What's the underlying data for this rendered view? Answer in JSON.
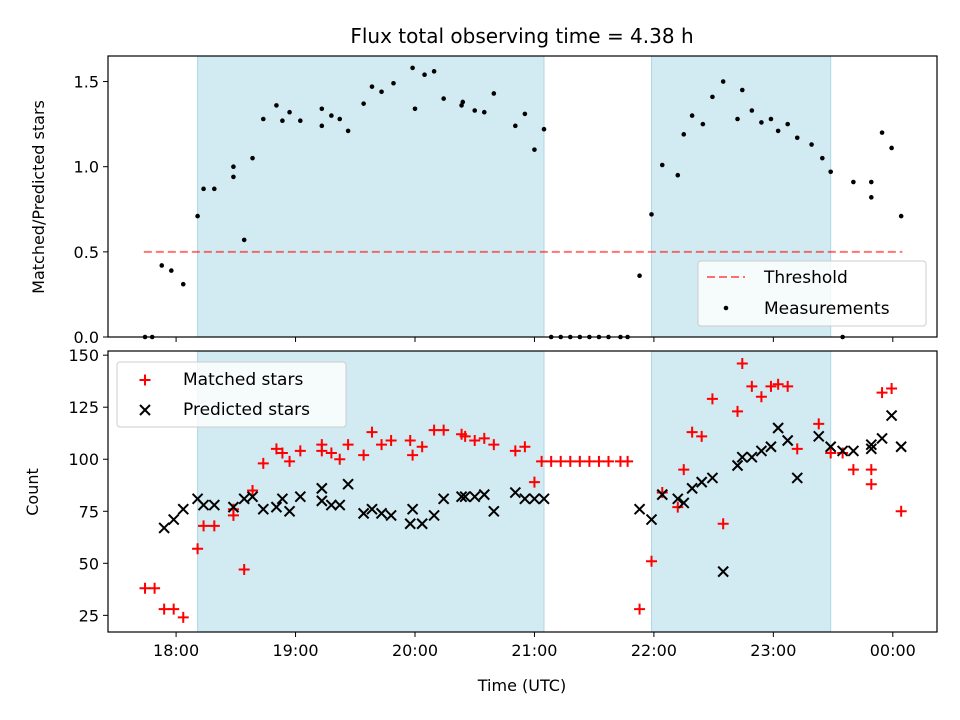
{
  "figure": {
    "title": "Flux total observing time = 4.38 h",
    "xlabel": "Time (UTC)",
    "xticks": [
      {
        "t": 18.0,
        "label": "18:00"
      },
      {
        "t": 19.0,
        "label": "19:00"
      },
      {
        "t": 20.0,
        "label": "20:00"
      },
      {
        "t": 21.0,
        "label": "21:00"
      },
      {
        "t": 22.0,
        "label": "22:00"
      },
      {
        "t": 23.0,
        "label": "23:00"
      },
      {
        "t": 24.0,
        "label": "00:00"
      }
    ],
    "xlim": [
      17.43,
      24.37
    ],
    "shaded_intervals": [
      [
        18.18,
        21.08
      ],
      [
        21.98,
        23.48
      ]
    ],
    "shade_color": "#add8e6"
  },
  "chart_data": [
    {
      "type": "scatter",
      "ylabel": "Matched/Predicted stars",
      "ylim": [
        0,
        1.65
      ],
      "yticks": [
        {
          "v": 0.0,
          "label": "0.0"
        },
        {
          "v": 0.5,
          "label": "0.5"
        },
        {
          "v": 1.0,
          "label": "1.0"
        },
        {
          "v": 1.5,
          "label": "1.5"
        }
      ],
      "legend_position": "bottom-right",
      "threshold": {
        "name": "Threshold",
        "value": 0.5,
        "x_range": [
          17.73,
          24.08
        ],
        "color": "#ff0000"
      },
      "series": [
        {
          "name": "Measurements",
          "marker": "dot",
          "color": "#000000",
          "points": [
            [
              17.74,
              0.0
            ],
            [
              17.8,
              0.0
            ],
            [
              17.88,
              0.42
            ],
            [
              17.96,
              0.39
            ],
            [
              18.06,
              0.31
            ],
            [
              18.18,
              0.71
            ],
            [
              18.23,
              0.87
            ],
            [
              18.32,
              0.87
            ],
            [
              18.48,
              1.0
            ],
            [
              18.48,
              0.94
            ],
            [
              18.57,
              0.57
            ],
            [
              18.64,
              1.05
            ],
            [
              18.73,
              1.28
            ],
            [
              18.84,
              1.36
            ],
            [
              18.89,
              1.27
            ],
            [
              18.95,
              1.32
            ],
            [
              19.04,
              1.27
            ],
            [
              19.22,
              1.34
            ],
            [
              19.22,
              1.24
            ],
            [
              19.3,
              1.3
            ],
            [
              19.37,
              1.28
            ],
            [
              19.44,
              1.21
            ],
            [
              19.57,
              1.37
            ],
            [
              19.64,
              1.47
            ],
            [
              19.72,
              1.44
            ],
            [
              19.82,
              1.49
            ],
            [
              19.98,
              1.58
            ],
            [
              20.0,
              1.34
            ],
            [
              20.08,
              1.54
            ],
            [
              20.16,
              1.56
            ],
            [
              20.24,
              1.4
            ],
            [
              20.39,
              1.36
            ],
            [
              20.4,
              1.38
            ],
            [
              20.5,
              1.33
            ],
            [
              20.58,
              1.32
            ],
            [
              20.66,
              1.43
            ],
            [
              20.84,
              1.24
            ],
            [
              20.92,
              1.31
            ],
            [
              21.0,
              1.1
            ],
            [
              21.08,
              1.22
            ],
            [
              21.14,
              0.0
            ],
            [
              21.22,
              0.0
            ],
            [
              21.3,
              0.0
            ],
            [
              21.38,
              0.0
            ],
            [
              21.46,
              0.0
            ],
            [
              21.54,
              0.0
            ],
            [
              21.62,
              0.0
            ],
            [
              21.72,
              0.0
            ],
            [
              21.78,
              0.0
            ],
            [
              21.88,
              0.36
            ],
            [
              21.98,
              0.72
            ],
            [
              22.07,
              1.01
            ],
            [
              22.2,
              0.95
            ],
            [
              22.25,
              1.19
            ],
            [
              22.32,
              1.3
            ],
            [
              22.41,
              1.25
            ],
            [
              22.49,
              1.41
            ],
            [
              22.58,
              1.5
            ],
            [
              22.7,
              1.28
            ],
            [
              22.74,
              1.45
            ],
            [
              22.82,
              1.33
            ],
            [
              22.9,
              1.26
            ],
            [
              22.98,
              1.28
            ],
            [
              23.04,
              1.21
            ],
            [
              23.12,
              1.25
            ],
            [
              23.2,
              1.17
            ],
            [
              23.32,
              1.13
            ],
            [
              23.41,
              1.05
            ],
            [
              23.48,
              0.97
            ],
            [
              23.58,
              0.0
            ],
            [
              23.67,
              0.91
            ],
            [
              23.82,
              0.91
            ],
            [
              23.82,
              0.82
            ],
            [
              23.91,
              1.2
            ],
            [
              23.99,
              1.11
            ],
            [
              24.07,
              0.71
            ]
          ]
        }
      ]
    },
    {
      "type": "scatter",
      "ylabel": "Count",
      "ylim": [
        17,
        152
      ],
      "yticks": [
        {
          "v": 25,
          "label": "25"
        },
        {
          "v": 50,
          "label": "50"
        },
        {
          "v": 75,
          "label": "75"
        },
        {
          "v": 100,
          "label": "100"
        },
        {
          "v": 125,
          "label": "125"
        },
        {
          "v": 150,
          "label": "150"
        }
      ],
      "legend_position": "top-left",
      "series": [
        {
          "name": "Matched stars",
          "marker": "plus",
          "color": "#ff0000",
          "points": [
            [
              17.74,
              38
            ],
            [
              17.82,
              38
            ],
            [
              17.9,
              28
            ],
            [
              17.98,
              28
            ],
            [
              18.06,
              24
            ],
            [
              18.18,
              57
            ],
            [
              18.23,
              68
            ],
            [
              18.32,
              68
            ],
            [
              18.48,
              73
            ],
            [
              18.48,
              76
            ],
            [
              18.57,
              47
            ],
            [
              18.64,
              85
            ],
            [
              18.73,
              98
            ],
            [
              18.84,
              105
            ],
            [
              18.89,
              103
            ],
            [
              18.95,
              99
            ],
            [
              19.04,
              104
            ],
            [
              19.22,
              107
            ],
            [
              19.22,
              104
            ],
            [
              19.3,
              103
            ],
            [
              19.37,
              100
            ],
            [
              19.44,
              107
            ],
            [
              19.57,
              102
            ],
            [
              19.64,
              113
            ],
            [
              19.72,
              107
            ],
            [
              19.8,
              109
            ],
            [
              19.96,
              109
            ],
            [
              19.98,
              102
            ],
            [
              20.06,
              106
            ],
            [
              20.16,
              114
            ],
            [
              20.24,
              114
            ],
            [
              20.39,
              112
            ],
            [
              20.42,
              111
            ],
            [
              20.5,
              109
            ],
            [
              20.58,
              110
            ],
            [
              20.66,
              107
            ],
            [
              20.84,
              104
            ],
            [
              20.92,
              106
            ],
            [
              21.0,
              89
            ],
            [
              21.06,
              99
            ],
            [
              21.14,
              99
            ],
            [
              21.22,
              99
            ],
            [
              21.3,
              99
            ],
            [
              21.38,
              99
            ],
            [
              21.46,
              99
            ],
            [
              21.54,
              99
            ],
            [
              21.62,
              99
            ],
            [
              21.72,
              99
            ],
            [
              21.78,
              99
            ],
            [
              21.88,
              28
            ],
            [
              21.98,
              51
            ],
            [
              22.07,
              84
            ],
            [
              22.2,
              77
            ],
            [
              22.25,
              95
            ],
            [
              22.32,
              113
            ],
            [
              22.4,
              111
            ],
            [
              22.49,
              129
            ],
            [
              22.58,
              69
            ],
            [
              22.7,
              123
            ],
            [
              22.74,
              146
            ],
            [
              22.82,
              135
            ],
            [
              22.9,
              130
            ],
            [
              22.98,
              135
            ],
            [
              23.04,
              136
            ],
            [
              23.12,
              135
            ],
            [
              23.2,
              105
            ],
            [
              23.38,
              117
            ],
            [
              23.48,
              103
            ],
            [
              23.58,
              103
            ],
            [
              23.67,
              95
            ],
            [
              23.82,
              95
            ],
            [
              23.82,
              88
            ],
            [
              23.91,
              132
            ],
            [
              23.99,
              134
            ],
            [
              24.07,
              75
            ]
          ]
        },
        {
          "name": "Predicted stars",
          "marker": "x",
          "color": "#000000",
          "points": [
            [
              17.9,
              67
            ],
            [
              17.98,
              71
            ],
            [
              18.06,
              76
            ],
            [
              18.18,
              81
            ],
            [
              18.23,
              78
            ],
            [
              18.32,
              78
            ],
            [
              18.48,
              77
            ],
            [
              18.57,
              81
            ],
            [
              18.64,
              82
            ],
            [
              18.73,
              76
            ],
            [
              18.84,
              77
            ],
            [
              18.89,
              81
            ],
            [
              18.95,
              75
            ],
            [
              19.04,
              82
            ],
            [
              19.22,
              86
            ],
            [
              19.22,
              80
            ],
            [
              19.3,
              78
            ],
            [
              19.37,
              78
            ],
            [
              19.44,
              88
            ],
            [
              19.57,
              74
            ],
            [
              19.64,
              76
            ],
            [
              19.72,
              74
            ],
            [
              19.8,
              73
            ],
            [
              19.96,
              69
            ],
            [
              19.98,
              76
            ],
            [
              20.06,
              69
            ],
            [
              20.16,
              73
            ],
            [
              20.24,
              81
            ],
            [
              20.39,
              82
            ],
            [
              20.42,
              82
            ],
            [
              20.5,
              82
            ],
            [
              20.58,
              83
            ],
            [
              20.66,
              75
            ],
            [
              20.84,
              84
            ],
            [
              20.92,
              81
            ],
            [
              21.0,
              81
            ],
            [
              21.08,
              81
            ],
            [
              21.88,
              76
            ],
            [
              21.98,
              71
            ],
            [
              22.07,
              83
            ],
            [
              22.2,
              81
            ],
            [
              22.25,
              79
            ],
            [
              22.32,
              86
            ],
            [
              22.4,
              89
            ],
            [
              22.49,
              91
            ],
            [
              22.58,
              46
            ],
            [
              22.7,
              97
            ],
            [
              22.74,
              101
            ],
            [
              22.82,
              101
            ],
            [
              22.9,
              104
            ],
            [
              22.98,
              106
            ],
            [
              23.04,
              115
            ],
            [
              23.12,
              109
            ],
            [
              23.2,
              91
            ],
            [
              23.38,
              111
            ],
            [
              23.48,
              106
            ],
            [
              23.58,
              104
            ],
            [
              23.67,
              104
            ],
            [
              23.82,
              107
            ],
            [
              23.82,
              105
            ],
            [
              23.91,
              110
            ],
            [
              23.99,
              121
            ],
            [
              24.07,
              106
            ]
          ]
        }
      ]
    }
  ]
}
